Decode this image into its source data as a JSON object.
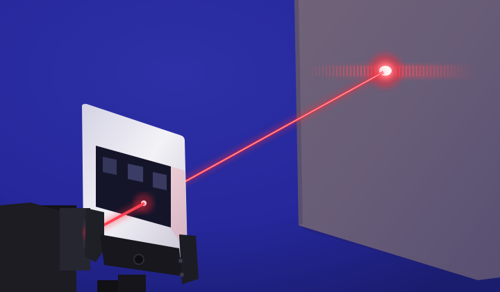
{
  "scene": {
    "subject": "laser-diffraction-setup",
    "colors": {
      "background": "#23258e",
      "laser": "#ff2a3c",
      "screen": "#6a5f7a",
      "slide": "#efeef2",
      "mount": "#1b1b20"
    },
    "icons": [
      "laser-emitter-icon",
      "slide-mount-icon",
      "diffraction-slide-icon",
      "projection-screen-icon",
      "laser-beam-icon",
      "diffraction-pattern-icon"
    ]
  }
}
